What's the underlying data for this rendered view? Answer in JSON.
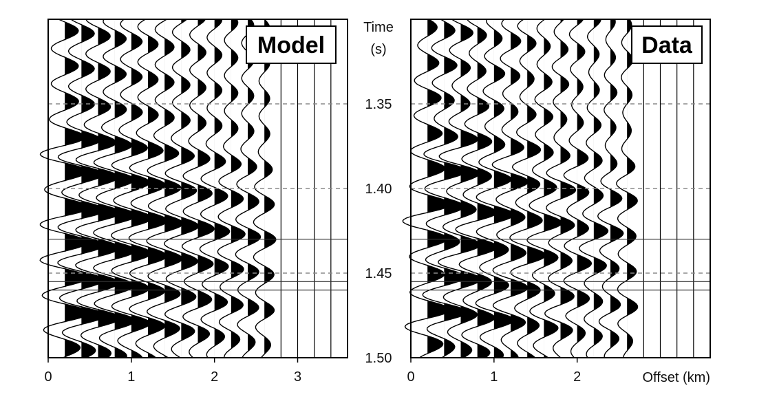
{
  "chart_data": [
    {
      "type": "seismic-wiggle",
      "label": "Model",
      "xlim": [
        0,
        3.6
      ],
      "ylim": [
        1.3,
        1.5
      ],
      "xticks": [
        "0",
        "1",
        "2",
        "3"
      ],
      "xtick_values": [
        0,
        1,
        2,
        3
      ],
      "trace_offsets": [
        0.2,
        0.4,
        0.6,
        0.8,
        1.0,
        1.2,
        1.4,
        1.6,
        1.8,
        2.0,
        2.2,
        2.4,
        2.6,
        2.8,
        3.0,
        3.2,
        3.4
      ],
      "live_traces": 13,
      "dashed_times": [
        1.35,
        1.4,
        1.45
      ],
      "solid_times": [
        1.43,
        1.455,
        1.46
      ]
    },
    {
      "type": "seismic-wiggle",
      "label": "Data",
      "xlim": [
        0,
        3.6
      ],
      "ylim": [
        1.3,
        1.5
      ],
      "xticks": [
        "0",
        "1",
        "2"
      ],
      "xtick_values": [
        0,
        1,
        2
      ],
      "xlabel": "Offset (km)",
      "trace_offsets": [
        0.2,
        0.4,
        0.6,
        0.8,
        1.0,
        1.2,
        1.4,
        1.6,
        1.8,
        2.0,
        2.2,
        2.4,
        2.6,
        2.8,
        3.0,
        3.2,
        3.4
      ],
      "live_traces": 13,
      "dashed_times": [
        1.35,
        1.4,
        1.45
      ],
      "solid_times": [
        1.43,
        1.455,
        1.46
      ]
    }
  ],
  "time_axis": {
    "title_line1": "Time",
    "title_line2": "(s)",
    "ticks": [
      "1.35",
      "1.40",
      "1.45",
      "1.50"
    ],
    "tick_values": [
      1.35,
      1.4,
      1.45,
      1.5
    ]
  },
  "colors": {
    "ink": "#000000",
    "grid_dashed": "#8a8a8a",
    "grid_solid": "#333333"
  }
}
